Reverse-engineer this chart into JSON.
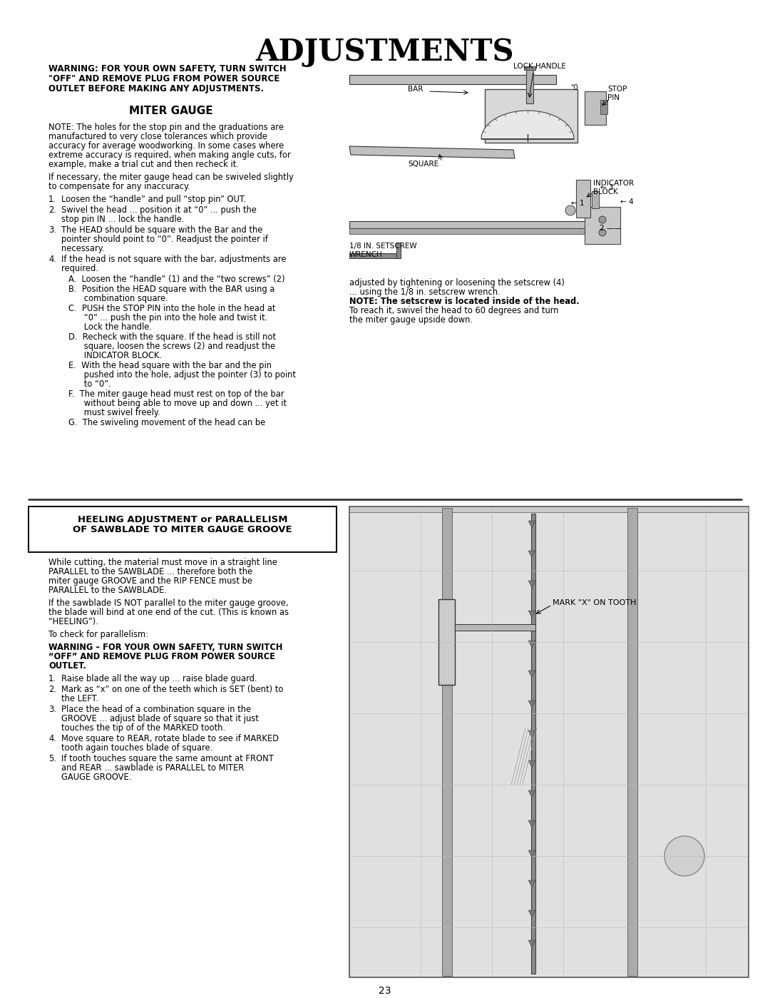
{
  "title": "ADJUSTMENTS",
  "bg_color": "#ffffff",
  "text_color": "#000000",
  "page_number": "23",
  "warning_text": "WARNING: FOR YOUR OWN SAFETY, TURN SWITCH\n\"OFF\" AND REMOVE PLUG FROM POWER SOURCE\nOUTLET BEFORE MAKING ANY ADJUSTMENTS.",
  "miter_gauge_title": "MITER GAUGE",
  "note_text": "NOTE: The holes for the stop pin and the graduations are\nmanufactured to very close tolerances which provide\naccuracy for average woodworking. In some cases where\nextreme accuracy is required, when making angle cuts, for\nexample, make a trial cut and then recheck it.",
  "para1": "If necessary, the miter gauge head can be swiveled slightly\nto compensate for any inaccuracy.",
  "steps_1_4": [
    "Loosen the “handle” and pull “stop pin” OUT.",
    "Swivel the head ... position it at “0” ... push the\nstop pin IN ... lock the handle.",
    "The HEAD should be square with the Bar and the\npointer should point to “0”. Readjust the pointer if\nnecessary.",
    "If the head is not square with the bar, adjustments are\nrequired."
  ],
  "sub_steps": [
    "A.  Loosen the “handle” (1) and the “two screws” (2)",
    "B.  Position the HEAD square with the BAR using a\n      combination square.",
    "C.  PUSH the STOP PIN into the hole in the head at\n      “0” ... push the pin into the hole and twist it.\n      Lock the handle.",
    "D.  Recheck with the square. If the head is still not\n      square, loosen the screws (2) and readjust the\n      INDICATOR BLOCK.",
    "E.  With the head square with the bar and the pin\n      pushed into the hole, adjust the pointer (3) to point\n      to “0”.",
    "F.  The miter gauge head must rest on top of the bar\n      without being able to move up and down ... yet it\n      must swivel freely.",
    "G.  The swiveling movement of the head can be"
  ],
  "right_col_text": "adjusted by tightening or loosening the setscrew (4)\n... using the 1/8 in. setscrew wrench.\nNOTE: The setscrew is located inside of the head.\nTo reach it, swivel the head to 60 degrees and turn\nthe miter gauge upside down.",
  "heeling_title": "HEELING ADJUSTMENT or PARALLELISM\nOF SAWBLADE TO MITER GAUGE GROOVE",
  "heeling_para1": "While cutting, the material must move in a straight line\nPARALLEL to the SAWBLADE ... therefore both the\nmiter gauge GROOVE and the RIP FENCE must be\nPARALLEL to the SAWBLADE.",
  "heeling_para2": "If the sawblade IS NOT parallel to the miter gauge groove,\nthe blade will bind at one end of the cut. (This is known as\n“HEELING”).",
  "heeling_para3": "To check for parallelism:",
  "heeling_warning": "WARNING – FOR YOUR OWN SAFETY, TURN SWITCH\n“OFF” AND REMOVE PLUG FROM POWER SOURCE\nOUTLET.",
  "heeling_steps": [
    "Raise blade all the way up ... raise blade guard.",
    "Mark as “x” on one of the teeth which is SET (bent) to\nthe LEFT.",
    "Place the head of a combination square in the\nGROOVE ... adjust blade of square so that it just\ntouches the tip of of the MARKED tooth.",
    "Move square to REAR, rotate blade to see if MARKED\ntooth again touches blade of square.",
    "If tooth touches square the same amount at FRONT\nand REAR ... sawblade is PARALLEL to MITER\nGAUGE GROOVE."
  ]
}
